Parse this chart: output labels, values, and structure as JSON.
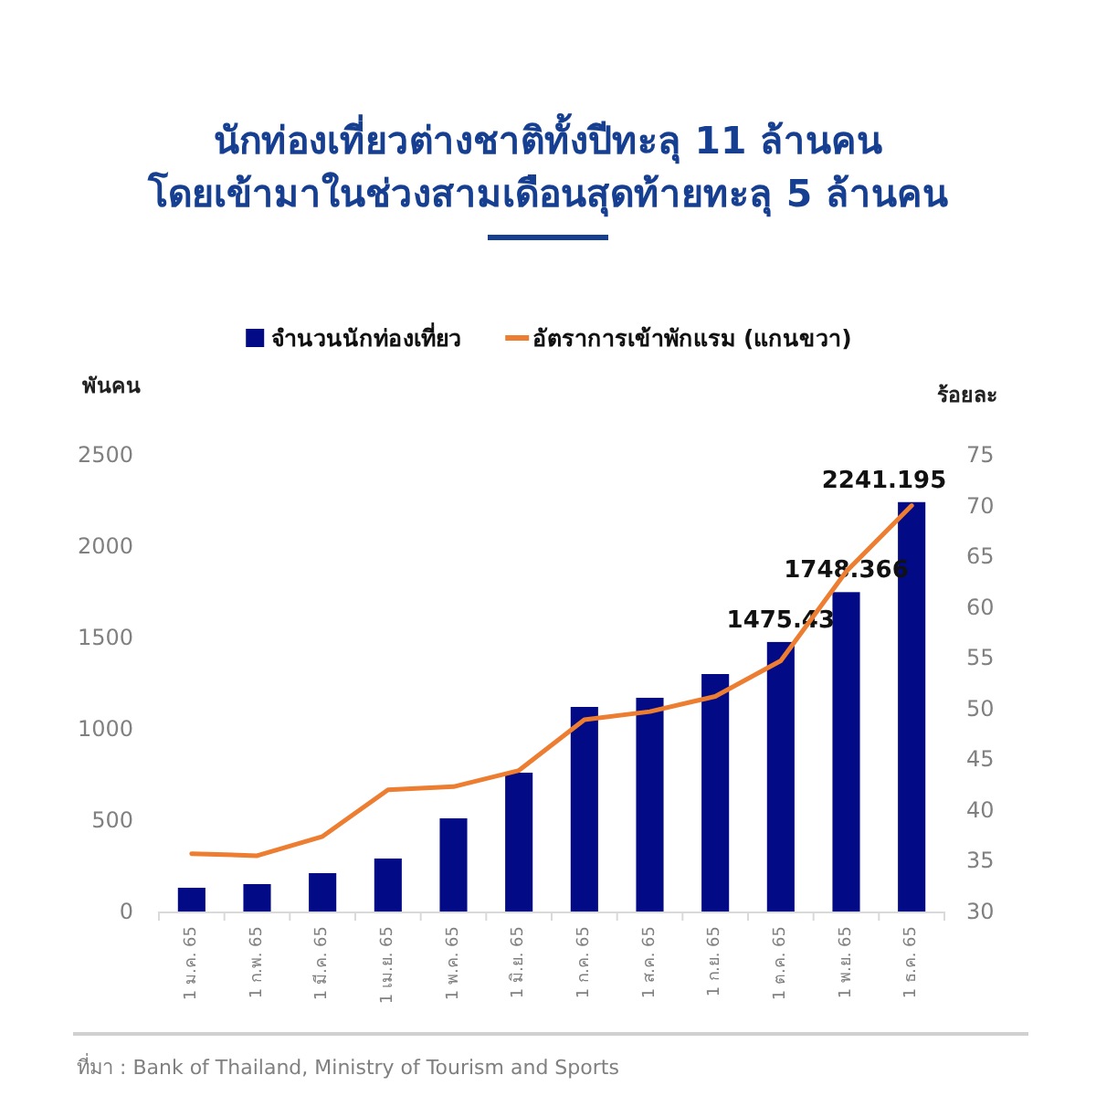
{
  "chart_data": {
    "type": "bar",
    "title": "นักท่องเที่ยวต่างชาติทั้งปีทะลุ 11 ล้านคน\nโดยเข้ามาในช่วงสามเดือนสุดท้ายทะลุ 5 ล้านคน",
    "ylabel": "พันคน",
    "y2label": "ร้อยละ",
    "categories": [
      "1 ม.ค. 65",
      "1 ก.พ. 65",
      "1 มี.ค. 65",
      "1 เม.ย. 65",
      "1 พ.ค. 65",
      "1 มิ.ย. 65",
      "1 ก.ค. 65",
      "1 ส.ค. 65",
      "1 ก.ย. 65",
      "1 ต.ค. 65",
      "1 พ.ย. 65",
      "1 ธ.ค. 65"
    ],
    "series": [
      {
        "name": "จำนวนนักท่องเที่ยว",
        "color": "#020a85",
        "values": [
          130,
          150,
          210,
          290,
          510,
          760,
          1120,
          1170,
          1300,
          1475.43,
          1748.366,
          2241.195
        ],
        "value_labels": [
          null,
          null,
          null,
          null,
          null,
          null,
          null,
          null,
          null,
          "1475.43",
          "1748.366",
          "2241.195"
        ]
      },
      {
        "name": "อัตราการเข้าพักแรม (แกนขวา)",
        "type": "line",
        "axis": "y2",
        "color": "#ed7d31",
        "values": [
          35.7,
          35.5,
          37.4,
          42.0,
          42.3,
          43.9,
          48.9,
          49.7,
          51.2,
          54.7,
          63.5,
          70.0
        ]
      }
    ],
    "ylim": [
      0,
      2500
    ],
    "yticks": [
      0,
      500,
      1000,
      1500,
      2000,
      2500
    ],
    "y2lim": [
      30,
      75
    ],
    "y2ticks": [
      30,
      35,
      40,
      45,
      50,
      55,
      60,
      65,
      70,
      75
    ],
    "legend": "top",
    "grid": false,
    "marker": "none",
    "annotations": [
      "ที่มา : Bank of Thailand, Ministry of Tourism and Sports"
    ]
  }
}
